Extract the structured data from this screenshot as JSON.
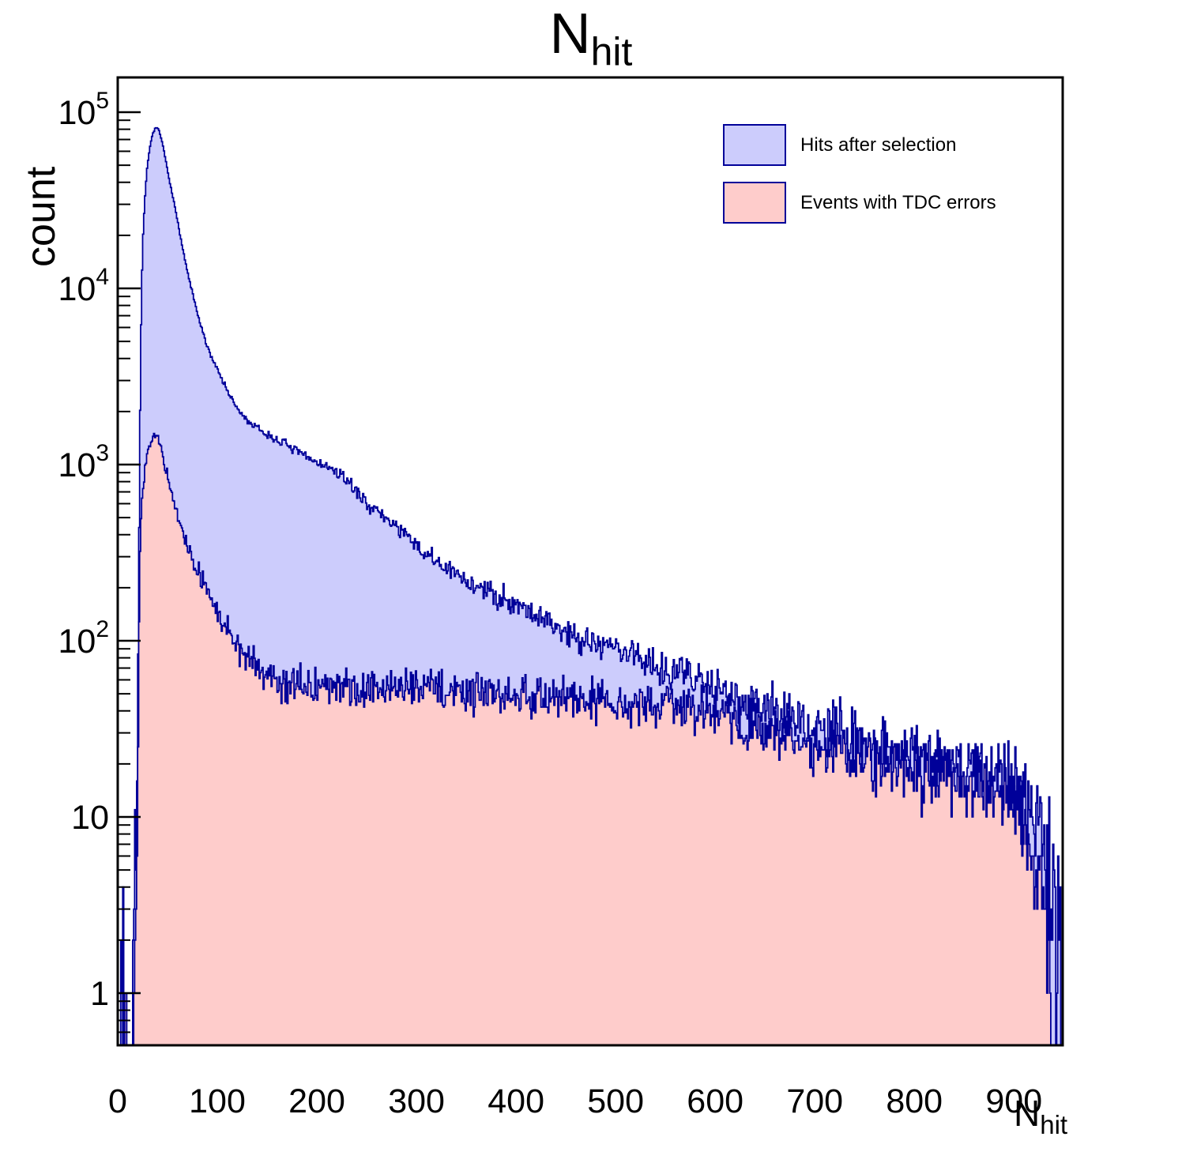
{
  "title": {
    "text": "N",
    "sub": "hit"
  },
  "y_axis": {
    "label": "count",
    "tick_labels": [
      {
        "v": 1,
        "text": "1",
        "sup": ""
      },
      {
        "v": 10,
        "text": "10",
        "sup": ""
      },
      {
        "v": 100,
        "text": "10",
        "sup": "2"
      },
      {
        "v": 1000,
        "text": "10",
        "sup": "3"
      },
      {
        "v": 10000,
        "text": "10",
        "sup": "4"
      },
      {
        "v": 100000,
        "text": "10",
        "sup": "5"
      }
    ]
  },
  "x_axis": {
    "label": "N",
    "label_sub": "hit",
    "ticks": [
      0,
      100,
      200,
      300,
      400,
      500,
      600,
      700,
      800,
      900
    ]
  },
  "legend": {
    "items": [
      {
        "label": "Hits after selection",
        "fill": "#ccccfc",
        "stroke": "#000099"
      },
      {
        "label": "Events with TDC errors",
        "fill": "#fecccb",
        "stroke": "#000099"
      }
    ]
  },
  "colors": {
    "frame": "#000000",
    "outline": "#000099",
    "blue_fill": "#ccccfc",
    "pink_fill": "#fecccb"
  },
  "chart_data": {
    "type": "bar",
    "subtype": "overlaid-step-histograms-log-y",
    "title": "N_hit",
    "xlabel": "N_hit",
    "ylabel": "count",
    "bin_width": 1,
    "x_range": [
      0,
      949
    ],
    "y_range": [
      0.506,
      157000
    ],
    "log_y": true,
    "legend_position": "top-right",
    "series": [
      {
        "name": "Hits after selection",
        "fill": "#ccccfc",
        "stroke": "#000099",
        "seed": 7,
        "noise_scale": 1.5,
        "envelope": [
          [
            2,
            0
          ],
          [
            3,
            1.2
          ],
          [
            9,
            1.2
          ],
          [
            10,
            0
          ],
          [
            14,
            0
          ],
          [
            15,
            0.7
          ],
          [
            17,
            2
          ],
          [
            19,
            12
          ],
          [
            20,
            40
          ],
          [
            21,
            200
          ],
          [
            22,
            900
          ],
          [
            23,
            4500
          ],
          [
            24,
            9000
          ],
          [
            25,
            18000
          ],
          [
            27,
            30000
          ],
          [
            29,
            45000
          ],
          [
            32,
            62000
          ],
          [
            35,
            75000
          ],
          [
            38,
            82000
          ],
          [
            41,
            80000
          ],
          [
            44,
            70000
          ],
          [
            47,
            58000
          ],
          [
            50,
            47000
          ],
          [
            54,
            36000
          ],
          [
            58,
            28000
          ],
          [
            63,
            19500
          ],
          [
            68,
            14000
          ],
          [
            73,
            10500
          ],
          [
            80,
            7200
          ],
          [
            88,
            5000
          ],
          [
            95,
            4000
          ],
          [
            100,
            3500
          ],
          [
            108,
            2800
          ],
          [
            115,
            2300
          ],
          [
            125,
            1900
          ],
          [
            134,
            1700
          ],
          [
            144,
            1550
          ],
          [
            155,
            1420
          ],
          [
            167,
            1330
          ],
          [
            180,
            1180
          ],
          [
            195,
            1070
          ],
          [
            216,
            930
          ],
          [
            230,
            820
          ],
          [
            245,
            650
          ],
          [
            260,
            540
          ],
          [
            280,
            450
          ],
          [
            300,
            340
          ],
          [
            320,
            280
          ],
          [
            335,
            245
          ],
          [
            350,
            220
          ],
          [
            370,
            190
          ],
          [
            400,
            165
          ],
          [
            425,
            135
          ],
          [
            450,
            112
          ],
          [
            475,
            100
          ],
          [
            500,
            91
          ],
          [
            525,
            80
          ],
          [
            550,
            70
          ],
          [
            575,
            63
          ],
          [
            600,
            56
          ],
          [
            625,
            48
          ],
          [
            650,
            42
          ],
          [
            675,
            36
          ],
          [
            700,
            31
          ],
          [
            725,
            29
          ],
          [
            750,
            27
          ],
          [
            775,
            25
          ],
          [
            800,
            23
          ],
          [
            825,
            21
          ],
          [
            850,
            20
          ],
          [
            865,
            19
          ],
          [
            880,
            18
          ],
          [
            900,
            15
          ],
          [
            915,
            12
          ],
          [
            925,
            9
          ],
          [
            931,
            6
          ],
          [
            936,
            4
          ],
          [
            940,
            5
          ],
          [
            943,
            0
          ],
          [
            944,
            2
          ],
          [
            946,
            0
          ],
          [
            947,
            1.5
          ],
          [
            948,
            0
          ]
        ]
      },
      {
        "name": "Events with TDC errors",
        "fill": "#fecccb",
        "stroke": "#000099",
        "seed": 13,
        "noise_scale": 1.3,
        "envelope": [
          [
            2,
            0
          ],
          [
            3,
            1.1
          ],
          [
            9,
            1.1
          ],
          [
            10,
            0
          ],
          [
            14,
            0
          ],
          [
            15,
            0.6
          ],
          [
            17,
            1.5
          ],
          [
            19,
            6
          ],
          [
            20,
            15
          ],
          [
            21,
            70
          ],
          [
            22,
            250
          ],
          [
            23,
            450
          ],
          [
            25,
            700
          ],
          [
            27,
            900
          ],
          [
            30,
            1150
          ],
          [
            34,
            1380
          ],
          [
            38,
            1500
          ],
          [
            41,
            1400
          ],
          [
            44,
            1200
          ],
          [
            47,
            1000
          ],
          [
            50,
            850
          ],
          [
            54,
            680
          ],
          [
            58,
            560
          ],
          [
            63,
            450
          ],
          [
            68,
            370
          ],
          [
            73,
            310
          ],
          [
            78,
            265
          ],
          [
            83,
            230
          ],
          [
            88,
            200
          ],
          [
            93,
            180
          ],
          [
            100,
            145
          ],
          [
            108,
            120
          ],
          [
            115,
            105
          ],
          [
            122,
            92
          ],
          [
            130,
            80
          ],
          [
            140,
            70
          ],
          [
            150,
            64
          ],
          [
            160,
            60
          ],
          [
            175,
            57
          ],
          [
            200,
            55
          ],
          [
            225,
            53
          ],
          [
            250,
            52
          ],
          [
            275,
            54
          ],
          [
            300,
            56
          ],
          [
            325,
            53
          ],
          [
            350,
            52
          ],
          [
            375,
            51
          ],
          [
            400,
            50
          ],
          [
            430,
            48
          ],
          [
            460,
            47
          ],
          [
            500,
            45
          ],
          [
            530,
            44
          ],
          [
            550,
            45
          ],
          [
            575,
            41
          ],
          [
            600,
            38
          ],
          [
            625,
            34
          ],
          [
            650,
            30
          ],
          [
            675,
            27
          ],
          [
            700,
            25
          ],
          [
            725,
            23
          ],
          [
            750,
            22
          ],
          [
            775,
            20
          ],
          [
            800,
            19
          ],
          [
            820,
            18
          ],
          [
            840,
            17
          ],
          [
            860,
            15
          ],
          [
            880,
            14
          ],
          [
            895,
            13
          ],
          [
            905,
            11
          ],
          [
            915,
            8
          ],
          [
            922,
            6
          ],
          [
            928,
            4
          ],
          [
            933,
            2.5
          ],
          [
            937,
            1.2
          ],
          [
            938,
            0
          ]
        ]
      }
    ]
  }
}
